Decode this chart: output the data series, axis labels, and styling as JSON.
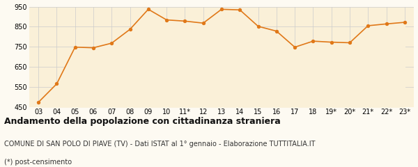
{
  "x_labels": [
    "03",
    "04",
    "05",
    "06",
    "07",
    "08",
    "09",
    "10",
    "11*",
    "12",
    "13",
    "14",
    "15",
    "16",
    "17",
    "18",
    "19*",
    "20*",
    "21*",
    "22*",
    "23*"
  ],
  "values": [
    473,
    565,
    748,
    745,
    768,
    837,
    937,
    884,
    878,
    868,
    937,
    934,
    852,
    828,
    748,
    778,
    773,
    770,
    855,
    864,
    872
  ],
  "line_color": "#E07818",
  "fill_color": "#FAF0D8",
  "marker_color": "#E07818",
  "bg_color": "#FDFAF2",
  "grid_color": "#CCCCCC",
  "ylim": [
    450,
    950
  ],
  "yticks": [
    450,
    550,
    650,
    750,
    850,
    950
  ],
  "title": "Andamento della popolazione con cittadinanza straniera",
  "subtitle": "COMUNE DI SAN POLO DI PIAVE (TV) - Dati ISTAT al 1° gennaio - Elaborazione TUTTITALIA.IT",
  "footnote": "(*) post-censimento",
  "title_fontsize": 9,
  "subtitle_fontsize": 7,
  "footnote_fontsize": 7,
  "tick_fontsize": 7
}
